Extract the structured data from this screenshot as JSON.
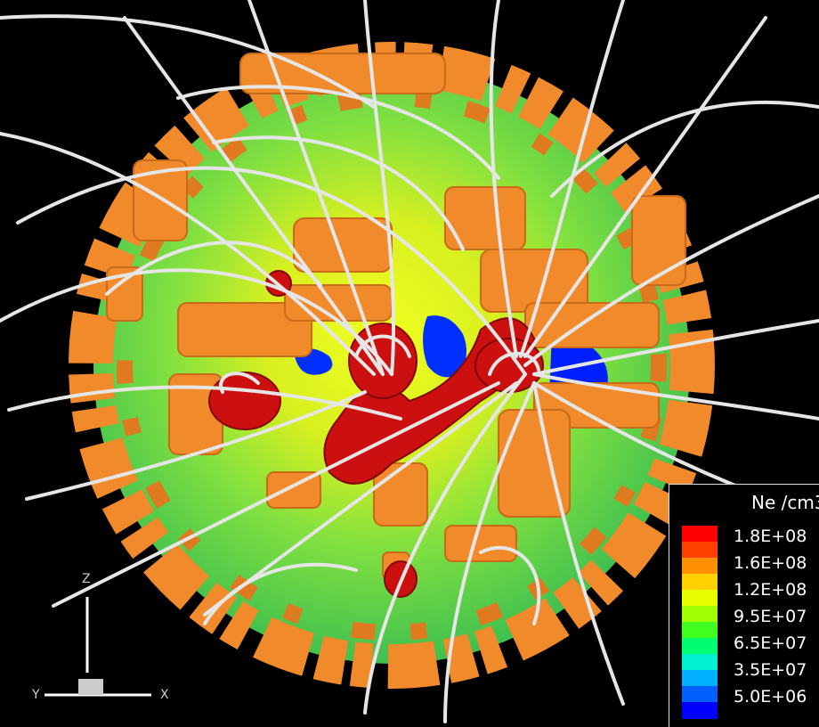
{
  "legend": {
    "title": "Ne /cm3",
    "labels": [
      "1.8E+08",
      "1.6E+08",
      "1.2E+08",
      "9.5E+07",
      "6.5E+07",
      "3.5E+07",
      "5.0E+06"
    ],
    "colors": [
      "#ff0000",
      "#ff4000",
      "#ff9000",
      "#ffd000",
      "#e8ff00",
      "#a0ff00",
      "#40ff20",
      "#00ff70",
      "#00f0d0",
      "#00b0ff",
      "#0060ff",
      "#0000ff"
    ]
  },
  "axes": {
    "z": "Z",
    "y": "Y",
    "x": "X"
  },
  "colors": {
    "background": "#000000",
    "isosurface": "#f08a2a",
    "core_density": "#cc1010",
    "field_lines": "#e6e6e6"
  }
}
